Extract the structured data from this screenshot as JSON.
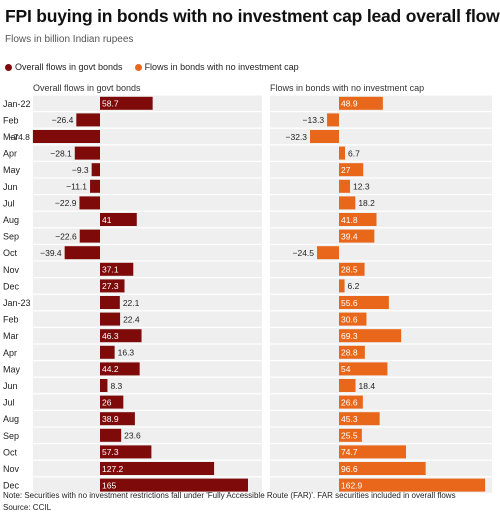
{
  "title": "FPI buying in bonds with no investment cap lead overall flows",
  "subtitle": "Flows in billion Indian rupees",
  "legend": [
    {
      "label": "Overall flows in govt bonds",
      "color": "#7f0a0a"
    },
    {
      "label": "Flows in bonds with no investment cap",
      "color": "#e9671b"
    }
  ],
  "note": "Note: Securities with no investment restrictions fall under 'Fully Accessible Route (FAR)'. FAR securities included in overall flows",
  "source": "Source: CCIL",
  "chart_data": {
    "type": "bar",
    "orientation": "horizontal",
    "categories": [
      "Jan-22",
      "Feb",
      "Mar",
      "Apr",
      "May",
      "Jun",
      "Jul",
      "Aug",
      "Sep",
      "Oct",
      "Nov",
      "Dec",
      "Jan-23",
      "Feb",
      "Mar",
      "Apr",
      "May",
      "Jun",
      "Jul",
      "Aug",
      "Sep",
      "Oct",
      "Nov",
      "Dec"
    ],
    "series": [
      {
        "name": "Overall flows in govt bonds",
        "color": "#7f0a0a",
        "values": [
          58.7,
          -26.4,
          -74.8,
          -28.1,
          -9.3,
          -11.1,
          -22.9,
          41,
          -22.6,
          -39.4,
          37.1,
          27.3,
          22.1,
          22.4,
          46.3,
          16.3,
          44.2,
          8.3,
          26,
          38.9,
          23.6,
          57.3,
          127.2,
          165
        ],
        "labels": [
          "58.7",
          "−26.4",
          "−74.8",
          "−28.1",
          "−9.3",
          "−11.1",
          "−22.9",
          "41",
          "−22.6",
          "−39.4",
          "37.1",
          "27.3",
          "22.1",
          "22.4",
          "46.3",
          "16.3",
          "44.2",
          "8.3",
          "26",
          "38.9",
          "23.6",
          "57.3",
          "127.2",
          "165"
        ]
      },
      {
        "name": "Flows in bonds with no investment cap",
        "color": "#e9671b",
        "values": [
          48.9,
          -13.3,
          -32.3,
          6.7,
          27,
          12.3,
          18.2,
          41.8,
          39.4,
          -24.5,
          28.5,
          6.2,
          55.6,
          30.6,
          69.3,
          28.8,
          54,
          18.4,
          26.6,
          45.3,
          25.5,
          74.7,
          96.6,
          162.9
        ],
        "labels": [
          "48.9",
          "−13.3",
          "−32.3",
          "6.7",
          "27",
          "12.3",
          "18.2",
          "41.8",
          "39.4",
          "−24.5",
          "28.5",
          "6.2",
          "55.6",
          "30.6",
          "69.3",
          "28.8",
          "54",
          "18.4",
          "26.6",
          "45.3",
          "25.5",
          "74.7",
          "96.6",
          "162.9"
        ]
      }
    ],
    "panel_titles": [
      "Overall flows in govt bonds",
      "Flows in bonds with no investment cap"
    ],
    "xlim": [
      -75,
      165
    ]
  }
}
